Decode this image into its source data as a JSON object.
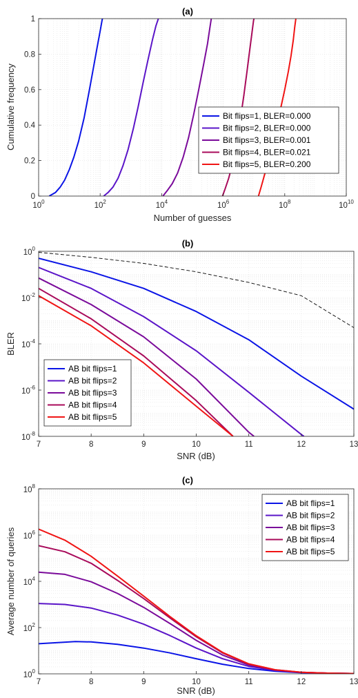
{
  "colors": {
    "series": [
      "#0a14e6",
      "#5a14c8",
      "#7a0a9a",
      "#a80a5a",
      "#f01414"
    ],
    "axis": "#262626",
    "grid": "#dcdcdc",
    "reference_dashed": "#000000"
  },
  "chart_data": [
    {
      "id": "a",
      "type": "line",
      "title": "(a)",
      "xlabel": "Number of guesses",
      "ylabel": "Cumulative frequency",
      "xscale": "log",
      "xlim": [
        1,
        10000000000
      ],
      "ylim": [
        0,
        1
      ],
      "xticks": [
        {
          "base": "10",
          "exp": "0",
          "value": 1
        },
        {
          "base": "10",
          "exp": "2",
          "value": 100
        },
        {
          "base": "10",
          "exp": "4",
          "value": 10000
        },
        {
          "base": "10",
          "exp": "6",
          "value": 1000000
        },
        {
          "base": "10",
          "exp": "8",
          "value": 100000000
        },
        {
          "base": "10",
          "exp": "10",
          "value": 10000000000
        }
      ],
      "yticks": [
        {
          "label": "0",
          "value": 0
        },
        {
          "label": "0.2",
          "value": 0.2
        },
        {
          "label": "0.4",
          "value": 0.4
        },
        {
          "label": "0.6",
          "value": 0.6
        },
        {
          "label": "0.8",
          "value": 0.8
        },
        {
          "label": "1",
          "value": 1
        }
      ],
      "grid": true,
      "minor_grid": true,
      "legend": "center-right",
      "series": [
        {
          "name": "Bit flips=1, BLER=0.000",
          "x": [
            2.2,
            3.5,
            5,
            7,
            10,
            14,
            20,
            30,
            45,
            60,
            80,
            100,
            118,
            125
          ],
          "y": [
            0,
            0.02,
            0.05,
            0.09,
            0.15,
            0.22,
            0.31,
            0.44,
            0.6,
            0.72,
            0.84,
            0.93,
            1,
            1
          ]
        },
        {
          "name": "Bit flips=2, BLER=0.000",
          "x": [
            130,
            180,
            260,
            380,
            550,
            800,
            1200,
            1700,
            2500,
            3500,
            5000,
            6500,
            7800,
            8000
          ],
          "y": [
            0,
            0.02,
            0.05,
            0.1,
            0.17,
            0.26,
            0.38,
            0.5,
            0.64,
            0.76,
            0.88,
            0.96,
            1,
            1
          ]
        },
        {
          "name": "Bit flips=3, BLER=0.001",
          "x": [
            11000,
            15000,
            22000,
            33000,
            50000,
            75000,
            110000,
            160000,
            230000,
            310000,
            370000,
            400000,
            410000
          ],
          "y": [
            0,
            0.03,
            0.07,
            0.13,
            0.22,
            0.33,
            0.46,
            0.6,
            0.74,
            0.86,
            0.95,
            0.99,
            1
          ]
        },
        {
          "name": "Bit flips=4, BLER=0.021",
          "x": [
            950000,
            1150000,
            1500000,
            2000000,
            2700000,
            3600000,
            4700000,
            5900000,
            7100000,
            8300000,
            9200000,
            9700000,
            10000000
          ],
          "y": [
            0,
            0.04,
            0.1,
            0.18,
            0.3,
            0.43,
            0.57,
            0.7,
            0.81,
            0.9,
            0.96,
            0.99,
            1
          ]
        },
        {
          "name": "Bit flips=5, BLER=0.200",
          "x": [
            14000000,
            17000000,
            22000000,
            30000000,
            40000000,
            55000000,
            75000000,
            100000000,
            130000000,
            160000000,
            190000000,
            210000000,
            230000000
          ],
          "y": [
            0,
            0.05,
            0.12,
            0.2,
            0.3,
            0.4,
            0.5,
            0.6,
            0.7,
            0.79,
            0.88,
            0.95,
            1
          ]
        }
      ]
    },
    {
      "id": "b",
      "type": "line",
      "title": "(b)",
      "xlabel": "SNR (dB)",
      "ylabel": "BLER",
      "yscale": "log",
      "xlim": [
        7,
        13
      ],
      "ylim": [
        1e-08,
        1
      ],
      "xticks": [
        {
          "label": "7",
          "value": 7
        },
        {
          "label": "8",
          "value": 8
        },
        {
          "label": "9",
          "value": 9
        },
        {
          "label": "10",
          "value": 10
        },
        {
          "label": "11",
          "value": 11
        },
        {
          "label": "12",
          "value": 12
        },
        {
          "label": "13",
          "value": 13
        }
      ],
      "yticks": [
        {
          "base": "10",
          "exp": "-8",
          "value": 1e-08
        },
        {
          "base": "10",
          "exp": "-6",
          "value": 1e-06
        },
        {
          "base": "10",
          "exp": "-4",
          "value": 0.0001
        },
        {
          "base": "10",
          "exp": "-2",
          "value": 0.01
        },
        {
          "base": "10",
          "exp": "0",
          "value": 1
        }
      ],
      "grid": true,
      "minor_grid": true,
      "legend": "bottom-left",
      "reference": {
        "x": [
          7,
          8,
          9,
          10,
          11,
          12,
          13
        ],
        "y": [
          0.9,
          0.55,
          0.3,
          0.13,
          0.045,
          0.012,
          0.0005
        ]
      },
      "series": [
        {
          "name": "AB bit flips=1",
          "x": [
            7,
            8,
            9,
            10,
            11,
            12,
            13
          ],
          "y": [
            0.5,
            0.13,
            0.025,
            0.0025,
            0.00015,
            4e-06,
            1.5e-07
          ]
        },
        {
          "name": "AB bit flips=2",
          "x": [
            7,
            8,
            9,
            10,
            11,
            12,
            12.05
          ],
          "y": [
            0.2,
            0.025,
            0.0015,
            5e-05,
            8e-07,
            1.2e-08,
            1e-08
          ]
        },
        {
          "name": "AB bit flips=3",
          "x": [
            7,
            8,
            9,
            10,
            11,
            11.1
          ],
          "y": [
            0.07,
            0.005,
            0.0002,
            3e-06,
            1.5e-08,
            1e-08
          ]
        },
        {
          "name": "AB bit flips=4",
          "x": [
            7,
            8,
            9,
            10,
            10.7
          ],
          "y": [
            0.025,
            0.0012,
            3e-05,
            3.5e-07,
            1e-08
          ]
        },
        {
          "name": "AB bit flips=5",
          "x": [
            7,
            8,
            9,
            10,
            10.7
          ],
          "y": [
            0.012,
            0.0006,
            1.5e-05,
            2e-07,
            1e-08
          ]
        }
      ]
    },
    {
      "id": "c",
      "type": "line",
      "title": "(c)",
      "xlabel": "SNR (dB)",
      "ylabel": "Average number of queries",
      "yscale": "log",
      "xlim": [
        7,
        13
      ],
      "ylim": [
        1,
        100000000
      ],
      "xticks": [
        {
          "label": "7",
          "value": 7
        },
        {
          "label": "8",
          "value": 8
        },
        {
          "label": "9",
          "value": 9
        },
        {
          "label": "10",
          "value": 10
        },
        {
          "label": "11",
          "value": 11
        },
        {
          "label": "12",
          "value": 12
        },
        {
          "label": "13",
          "value": 13
        }
      ],
      "yticks": [
        {
          "base": "10",
          "exp": "0",
          "value": 1
        },
        {
          "base": "10",
          "exp": "2",
          "value": 100
        },
        {
          "base": "10",
          "exp": "4",
          "value": 10000
        },
        {
          "base": "10",
          "exp": "6",
          "value": 1000000
        },
        {
          "base": "10",
          "exp": "8",
          "value": 100000000
        }
      ],
      "grid": true,
      "minor_grid": true,
      "legend": "top-right",
      "series": [
        {
          "name": "AB bit flips=1",
          "x": [
            7,
            7.7,
            8,
            8.5,
            9,
            9.5,
            10,
            10.5,
            11,
            11.5,
            12,
            12.5,
            13
          ],
          "y": [
            20,
            25,
            24,
            19,
            13,
            8,
            4.5,
            2.6,
            1.7,
            1.3,
            1.12,
            1.06,
            1.03
          ]
        },
        {
          "name": "AB bit flips=2",
          "x": [
            7,
            7.5,
            8,
            8.5,
            9,
            9.5,
            10,
            10.5,
            11,
            11.5,
            12,
            12.5,
            13
          ],
          "y": [
            1100,
            1000,
            700,
            350,
            140,
            45,
            13,
            4.5,
            2.1,
            1.4,
            1.15,
            1.07,
            1.03
          ]
        },
        {
          "name": "AB bit flips=3",
          "x": [
            7,
            7.5,
            8,
            8.5,
            9,
            9.5,
            10,
            10.5,
            11,
            11.5,
            12,
            12.5,
            13
          ],
          "y": [
            25000,
            20000,
            9500,
            3000,
            750,
            150,
            28,
            6.5,
            2.4,
            1.45,
            1.16,
            1.07,
            1.03
          ]
        },
        {
          "name": "AB bit flips=4",
          "x": [
            7,
            7.5,
            8,
            8.5,
            9,
            9.5,
            10,
            10.5,
            11,
            11.5,
            12,
            12.5,
            13
          ],
          "y": [
            350000,
            190000,
            60000,
            11000,
            1800,
            260,
            40,
            8,
            2.6,
            1.5,
            1.17,
            1.07,
            1.03
          ]
        },
        {
          "name": "AB bit flips=5",
          "x": [
            7,
            7.5,
            8,
            8.5,
            9,
            9.5,
            10,
            10.5,
            11,
            11.5,
            12,
            12.5,
            13
          ],
          "y": [
            1800000,
            600000,
            120000,
            17000,
            2300,
            300,
            44,
            8.5,
            2.7,
            1.5,
            1.17,
            1.07,
            1.03
          ]
        }
      ]
    }
  ]
}
